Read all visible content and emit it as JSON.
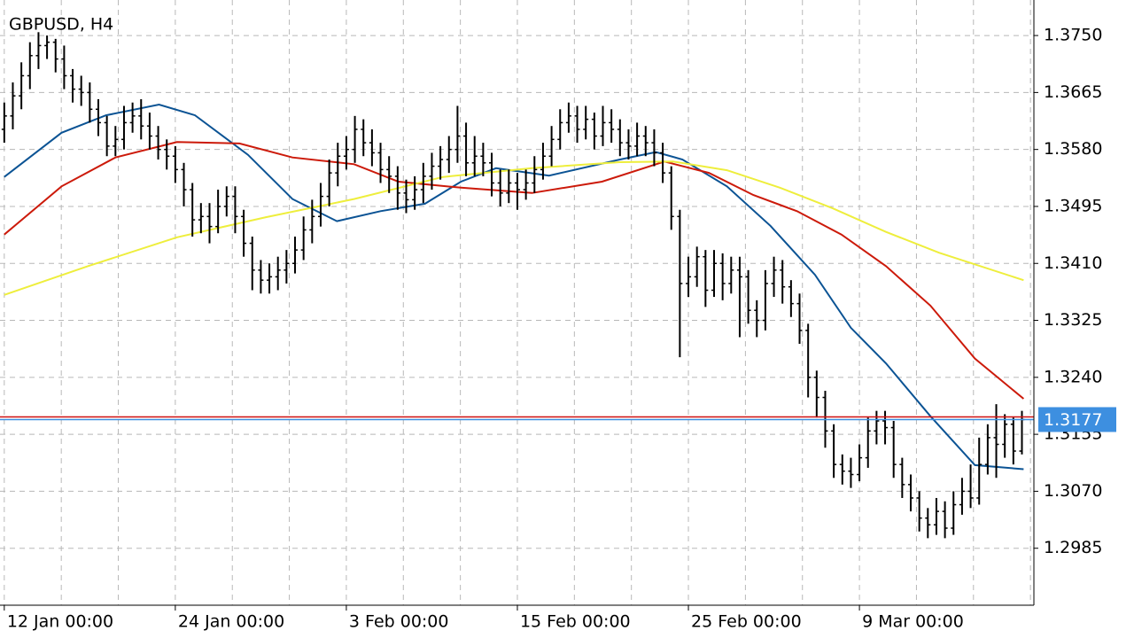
{
  "chart_data": {
    "type": "ohlc",
    "title": "GBPUSD, H4",
    "xlim": [
      -0.5,
      120.4
    ],
    "xticks": [
      {
        "value": 0,
        "label": "12 Jan 00:00"
      },
      {
        "value": 20,
        "label": "24 Jan 00:00"
      },
      {
        "value": 40,
        "label": "3 Feb 00:00"
      },
      {
        "value": 60,
        "label": "15 Feb 00:00"
      },
      {
        "value": 80,
        "label": "25 Feb 00:00"
      },
      {
        "value": 100,
        "label": "9 Mar 00:00"
      }
    ],
    "ylim": [
      1.29,
      1.3803
    ],
    "yticks": [
      {
        "value": 1.375,
        "label": "1.3750"
      },
      1.3665,
      {
        "value": 1.358,
        "label": "1.3580"
      },
      1.3495,
      {
        "value": 1.341,
        "label": "1.3410"
      },
      1.3325,
      {
        "value": 1.324,
        "label": "1.3240"
      },
      1.3155,
      {
        "value": 1.307,
        "label": "1.3070"
      },
      1.2985
    ],
    "grid": true,
    "bar_color": "#000000",
    "open": [
      1.361,
      1.363,
      1.366,
      1.369,
      1.372,
      1.3735,
      1.374,
      1.3715,
      1.369,
      1.367,
      1.3665,
      1.364,
      1.362,
      1.3585,
      1.3595,
      1.362,
      1.363,
      1.3615,
      1.36,
      1.358,
      1.357,
      1.355,
      1.352,
      1.3475,
      1.348,
      1.3465,
      1.3495,
      1.351,
      1.348,
      1.344,
      1.34,
      1.3385,
      1.339,
      1.34,
      1.341,
      1.343,
      1.346,
      1.348,
      1.351,
      1.3545,
      1.357,
      1.358,
      1.361,
      1.359,
      1.3575,
      1.355,
      1.354,
      1.3515,
      1.3505,
      1.352,
      1.354,
      1.3555,
      1.3565,
      1.358,
      1.36,
      1.356,
      1.357,
      1.356,
      1.353,
      1.3515,
      1.353,
      1.352,
      1.353,
      1.355,
      1.357,
      1.3595,
      1.362,
      1.363,
      1.361,
      1.3625,
      1.36,
      1.362,
      1.361,
      1.359,
      1.3585,
      1.36,
      1.359,
      1.3575,
      1.3545,
      1.348,
      1.338,
      1.339,
      1.342,
      1.337,
      1.341,
      1.338,
      1.34,
      1.339,
      1.334,
      1.3325,
      1.338,
      1.34,
      1.3375,
      1.335,
      1.331,
      1.324,
      1.321,
      1.316,
      1.311,
      1.31,
      1.3095,
      1.312,
      1.316,
      1.3175,
      1.3165,
      1.311,
      1.308,
      1.306,
      1.303,
      1.302,
      1.304,
      1.3015,
      1.305,
      1.307,
      1.306,
      1.311,
      1.315,
      1.314,
      1.317,
      1.313
    ],
    "high": [
      1.365,
      1.368,
      1.371,
      1.374,
      1.3755,
      1.375,
      1.3745,
      1.3735,
      1.37,
      1.369,
      1.368,
      1.3655,
      1.363,
      1.3615,
      1.3645,
      1.365,
      1.3655,
      1.3635,
      1.3615,
      1.3595,
      1.3585,
      1.356,
      1.353,
      1.35,
      1.35,
      1.352,
      1.3525,
      1.3525,
      1.349,
      1.345,
      1.3415,
      1.341,
      1.342,
      1.343,
      1.345,
      1.348,
      1.3505,
      1.353,
      1.3565,
      1.359,
      1.36,
      1.363,
      1.3625,
      1.361,
      1.359,
      1.357,
      1.3555,
      1.3535,
      1.354,
      1.356,
      1.3575,
      1.3585,
      1.36,
      1.3645,
      1.362,
      1.36,
      1.359,
      1.3575,
      1.355,
      1.355,
      1.3545,
      1.355,
      1.357,
      1.359,
      1.3615,
      1.364,
      1.365,
      1.3645,
      1.3645,
      1.3635,
      1.3645,
      1.364,
      1.3625,
      1.361,
      1.362,
      1.3615,
      1.361,
      1.359,
      1.3555,
      1.349,
      1.342,
      1.3435,
      1.343,
      1.343,
      1.3425,
      1.342,
      1.342,
      1.34,
      1.3355,
      1.34,
      1.342,
      1.3415,
      1.3385,
      1.3365,
      1.332,
      1.325,
      1.322,
      1.317,
      1.3125,
      1.312,
      1.314,
      1.318,
      1.319,
      1.319,
      1.3175,
      1.312,
      1.3095,
      1.307,
      1.3045,
      1.306,
      1.3055,
      1.307,
      1.309,
      1.311,
      1.315,
      1.317,
      1.32,
      1.3185,
      1.318,
      1.319
    ],
    "low": [
      1.359,
      1.361,
      1.364,
      1.367,
      1.37,
      1.3715,
      1.3695,
      1.367,
      1.365,
      1.3645,
      1.362,
      1.36,
      1.357,
      1.357,
      1.358,
      1.3605,
      1.3595,
      1.358,
      1.3565,
      1.355,
      1.353,
      1.3495,
      1.345,
      1.3455,
      1.344,
      1.3455,
      1.348,
      1.3455,
      1.342,
      1.337,
      1.3365,
      1.3365,
      1.337,
      1.338,
      1.3395,
      1.3415,
      1.344,
      1.3465,
      1.3495,
      1.3525,
      1.355,
      1.356,
      1.357,
      1.3555,
      1.353,
      1.3515,
      1.349,
      1.3485,
      1.349,
      1.35,
      1.352,
      1.3535,
      1.3545,
      1.356,
      1.354,
      1.354,
      1.354,
      1.351,
      1.3495,
      1.35,
      1.349,
      1.3505,
      1.3515,
      1.3535,
      1.3555,
      1.358,
      1.3605,
      1.359,
      1.3595,
      1.358,
      1.3585,
      1.359,
      1.357,
      1.3565,
      1.357,
      1.357,
      1.3555,
      1.353,
      1.346,
      1.327,
      1.336,
      1.3375,
      1.3345,
      1.336,
      1.3355,
      1.3365,
      1.33,
      1.332,
      1.33,
      1.331,
      1.336,
      1.335,
      1.333,
      1.329,
      1.321,
      1.318,
      1.3135,
      1.309,
      1.308,
      1.3075,
      1.3085,
      1.3105,
      1.314,
      1.314,
      1.309,
      1.306,
      1.304,
      1.301,
      1.3,
      1.3005,
      1.3,
      1.3005,
      1.3035,
      1.3045,
      1.305,
      1.3095,
      1.309,
      1.312,
      1.311,
      1.3125
    ],
    "close": [
      1.363,
      1.366,
      1.369,
      1.372,
      1.3735,
      1.374,
      1.3715,
      1.369,
      1.367,
      1.3665,
      1.364,
      1.362,
      1.3585,
      1.3595,
      1.362,
      1.363,
      1.3615,
      1.36,
      1.358,
      1.357,
      1.355,
      1.352,
      1.3475,
      1.348,
      1.3465,
      1.3495,
      1.351,
      1.348,
      1.344,
      1.34,
      1.3385,
      1.339,
      1.34,
      1.341,
      1.343,
      1.346,
      1.348,
      1.351,
      1.3545,
      1.357,
      1.358,
      1.361,
      1.359,
      1.3575,
      1.355,
      1.354,
      1.3515,
      1.3505,
      1.352,
      1.354,
      1.3555,
      1.3565,
      1.358,
      1.36,
      1.356,
      1.357,
      1.356,
      1.353,
      1.3515,
      1.353,
      1.352,
      1.353,
      1.355,
      1.357,
      1.3595,
      1.362,
      1.363,
      1.361,
      1.3625,
      1.36,
      1.362,
      1.361,
      1.359,
      1.3585,
      1.36,
      1.359,
      1.3575,
      1.3545,
      1.348,
      1.338,
      1.339,
      1.342,
      1.337,
      1.341,
      1.338,
      1.34,
      1.339,
      1.334,
      1.3325,
      1.338,
      1.34,
      1.3375,
      1.335,
      1.331,
      1.324,
      1.321,
      1.316,
      1.311,
      1.31,
      1.3095,
      1.312,
      1.316,
      1.3175,
      1.3165,
      1.311,
      1.308,
      1.306,
      1.303,
      1.302,
      1.304,
      1.3015,
      1.305,
      1.307,
      1.306,
      1.311,
      1.315,
      1.314,
      1.317,
      1.313,
      1.3177
    ],
    "series": [
      {
        "color": "#0b5394",
        "x": [
          0,
          6.7,
          11.9,
          18.1,
          22.3,
          28.5,
          33.7,
          38.9,
          44,
          49.2,
          53.4,
          57.5,
          63.7,
          72,
          76.2,
          79.3,
          84.5,
          89.6,
          94.8,
          99,
          103.1,
          108.3,
          113.5,
          119.2
        ],
        "values": [
          1.3539,
          1.3605,
          1.3631,
          1.3647,
          1.3631,
          1.3572,
          1.3506,
          1.3473,
          1.3488,
          1.3499,
          1.3532,
          1.3552,
          1.3541,
          1.3565,
          1.3576,
          1.3565,
          1.3525,
          1.3466,
          1.3393,
          1.3314,
          1.3261,
          1.3182,
          1.3109,
          1.3103
        ]
      },
      {
        "color": "#cc1a0a",
        "x": [
          0,
          6.7,
          13,
          20.2,
          27.5,
          33.7,
          40.9,
          46.1,
          53.4,
          61.7,
          69.9,
          77.2,
          82.4,
          87.6,
          92.7,
          97.9,
          103.1,
          108.3,
          113.5,
          119.2
        ],
        "values": [
          1.3453,
          1.3525,
          1.3568,
          1.3591,
          1.3589,
          1.3568,
          1.3558,
          1.3532,
          1.3523,
          1.3515,
          1.3532,
          1.3562,
          1.3545,
          1.3512,
          1.3488,
          1.3453,
          1.3406,
          1.3347,
          1.3268,
          1.3208
        ]
      },
      {
        "color": "#eeee3c",
        "x": [
          0,
          9.8,
          20.2,
          30.6,
          40.9,
          51.3,
          61.7,
          72,
          78.2,
          84.5,
          90.7,
          96.9,
          103.1,
          109.3,
          119.2
        ],
        "values": [
          1.3363,
          1.3406,
          1.3449,
          1.3479,
          1.3506,
          1.3539,
          1.3552,
          1.3561,
          1.3562,
          1.3549,
          1.3523,
          1.3492,
          1.3457,
          1.3426,
          1.3385
        ]
      }
    ],
    "bid": 1.3177,
    "bid_color": "#3d8fe0",
    "ask": 1.3181,
    "ask_color": "#d01010"
  }
}
